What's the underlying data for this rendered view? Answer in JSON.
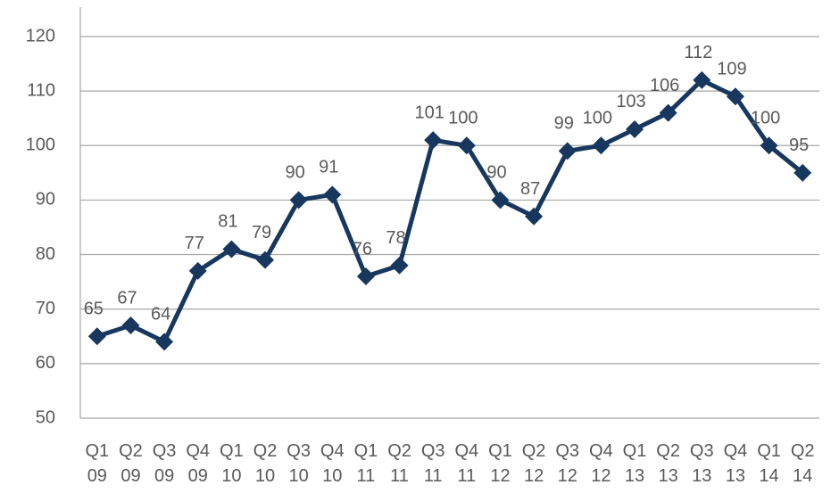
{
  "chart_data": {
    "type": "line",
    "categories": [
      "Q1 09",
      "Q2 09",
      "Q3 09",
      "Q4 09",
      "Q1 10",
      "Q2 10",
      "Q3 10",
      "Q4 10",
      "Q1 11",
      "Q2 11",
      "Q3 11",
      "Q4 11",
      "Q1 12",
      "Q2 12",
      "Q3 12",
      "Q4 12",
      "Q1 13",
      "Q2 13",
      "Q3 13",
      "Q4 13",
      "Q1 14",
      "Q2 14"
    ],
    "values": [
      65,
      67,
      64,
      77,
      81,
      79,
      90,
      91,
      76,
      78,
      101,
      100,
      90,
      87,
      99,
      100,
      103,
      106,
      112,
      109,
      100,
      95
    ],
    "color": "#17375e",
    "ylim": [
      50,
      120
    ],
    "yticks": [
      50,
      60,
      70,
      80,
      90,
      100,
      110,
      120
    ],
    "grid": true
  }
}
